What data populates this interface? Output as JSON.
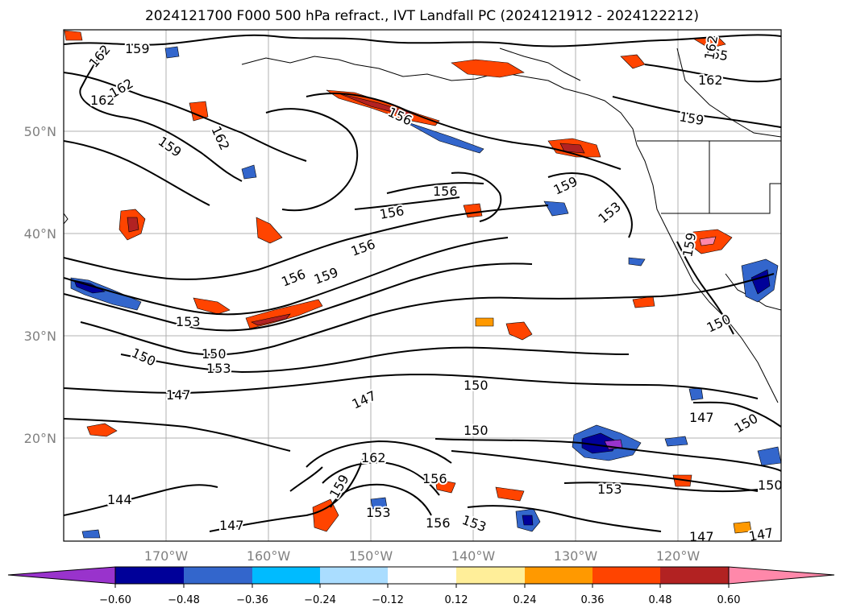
{
  "title": "2024121700 F000 500 hPa refract., IVT Landfall PC (2024121912 - 2024122212)",
  "map": {
    "lat_labels": [
      "50°N",
      "40°N",
      "30°N",
      "20°N"
    ],
    "lon_labels": [
      "170°W",
      "160°W",
      "150°W",
      "140°W",
      "130°W",
      "120°W"
    ],
    "contour_labels": [
      "159",
      "162",
      "162",
      "162",
      "159",
      "162",
      "156",
      "156",
      "156",
      "159",
      "156",
      "156",
      "159",
      "153",
      "150",
      "150",
      "153",
      "147",
      "147",
      "150",
      "150",
      "162",
      "159",
      "156",
      "153",
      "153",
      "144",
      "147",
      "165",
      "162",
      "159",
      "156",
      "153",
      "150",
      "147",
      "150",
      "153",
      "150",
      "147",
      "147",
      "162",
      "159"
    ]
  },
  "colorbar": {
    "ticks": [
      "−0.60",
      "−0.48",
      "−0.36",
      "−0.24",
      "−0.12",
      "0.12",
      "0.24",
      "0.36",
      "0.48",
      "0.60"
    ],
    "colors": [
      "#9933cc",
      "#000099",
      "#3366cc",
      "#00bbff",
      "#aaddff",
      "#ffffff",
      "#ffee99",
      "#ff9900",
      "#ff4400",
      "#b22222",
      "#ff88aa",
      "#ff88aa"
    ]
  }
}
